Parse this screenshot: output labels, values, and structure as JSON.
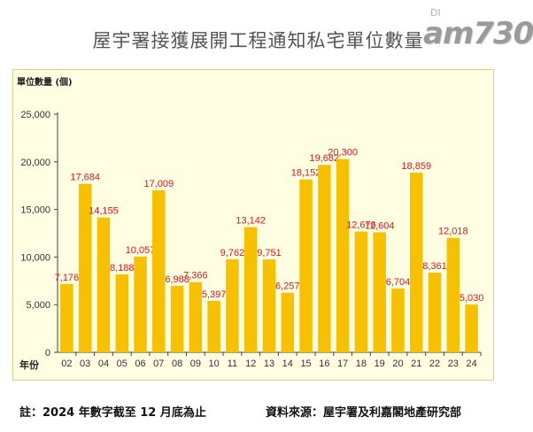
{
  "title": "屋宇署接獲展開工程通知私宅單位數量",
  "logo": {
    "main": "am730",
    "brand": "DI"
  },
  "footnote_left": "註：2024 年數字截至 12 月底為止",
  "footnote_right": "資料來源：屋宇署及利嘉閣地產研究部",
  "colors": {
    "bar": "#f7c000",
    "label": "#e5161e",
    "background": "#fffde2"
  },
  "chart_data": {
    "type": "bar",
    "ylabel": "單位數量 (個)",
    "xlabel": "年份",
    "ylim": [
      0,
      25000
    ],
    "yticks": [
      0,
      5000,
      10000,
      15000,
      20000,
      25000
    ],
    "ytick_labels": [
      "0",
      "5,000",
      "10,000",
      "15,000",
      "20,000",
      "25,000"
    ],
    "grid": false,
    "categories": [
      "02",
      "03",
      "04",
      "05",
      "06",
      "07",
      "08",
      "09",
      "10",
      "11",
      "12",
      "13",
      "14",
      "15",
      "16",
      "17",
      "18",
      "19",
      "20",
      "21",
      "22",
      "23",
      "24"
    ],
    "values": [
      7176,
      17684,
      14155,
      8188,
      10057,
      17009,
      6988,
      7366,
      5397,
      9762,
      13142,
      9751,
      6257,
      18152,
      19682,
      20300,
      12676,
      12604,
      6704,
      18859,
      8361,
      12018,
      5030
    ],
    "data_labels": [
      "7,176",
      "17,684",
      "14,155",
      "8,188",
      "10,057",
      "17,009",
      "6,988",
      "7,366",
      "5,397",
      "9,762",
      "13,142",
      "9,751",
      "6,257",
      "18,152",
      "19,682",
      "20,300",
      "12,676",
      "12,604",
      "6,704",
      "18,859",
      "8,361",
      "12,018",
      "5,030"
    ]
  }
}
